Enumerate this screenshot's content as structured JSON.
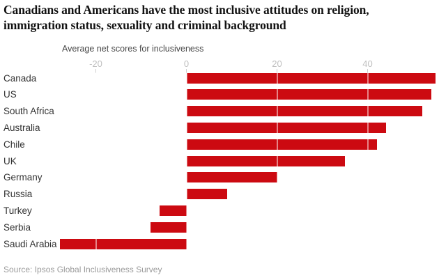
{
  "header": {
    "title": "Canadians and Americans have the most inclusive attitudes on religion, immigration status, sexuality and criminal background"
  },
  "footer": {
    "source": "Source: Ipsos Global Inclusiveness Survey"
  },
  "chart_data": {
    "type": "bar",
    "orientation": "horizontal",
    "title": "Canadians and Americans have the most inclusive attitudes on religion, immigration status, sexuality and criminal background",
    "subtitle": "Average net scores for inclusiveness",
    "categories": [
      "Canada",
      "US",
      "South Africa",
      "Australia",
      "Chile",
      "UK",
      "Germany",
      "Russia",
      "Turkey",
      "Serbia",
      "Saudi Arabia"
    ],
    "values": [
      55,
      54,
      52,
      44,
      42,
      35,
      20,
      9,
      -6,
      -8,
      -28
    ],
    "xticks": [
      -20,
      0,
      20,
      40
    ],
    "xlim": [
      -30,
      56
    ],
    "grid": "vertical-ticks-with-white-overlay-on-bars",
    "legend": "none",
    "bar_color": "#cc0a11",
    "axis_label_color": "#bfbfbf",
    "source": "Source: Ipsos Global Inclusiveness Survey"
  }
}
